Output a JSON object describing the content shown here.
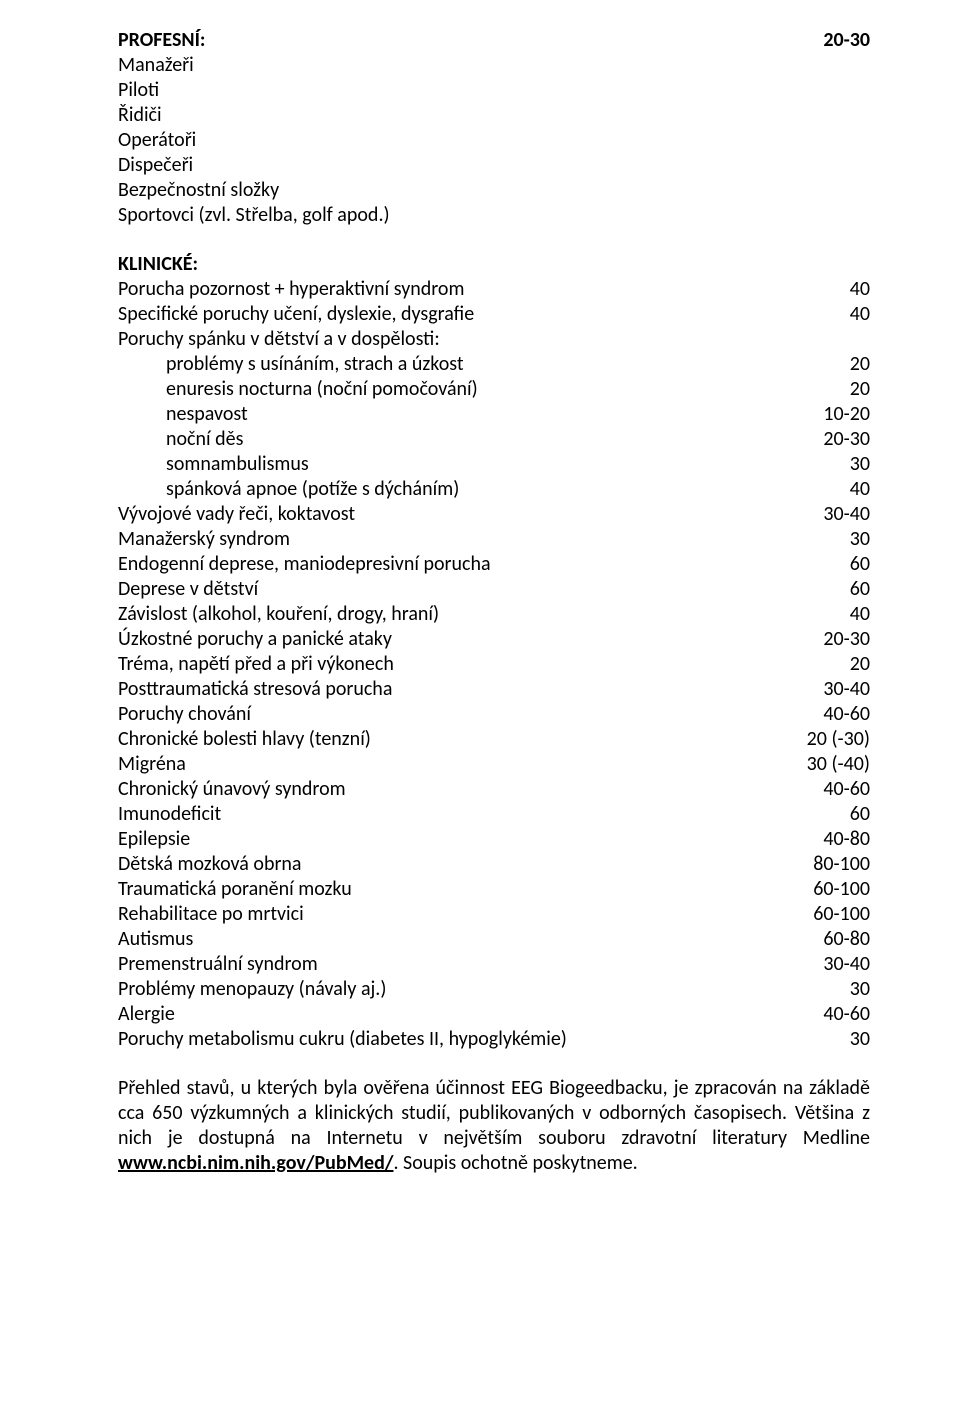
{
  "profesni": {
    "heading": "PROFESNÍ:",
    "heading_val": "20-30",
    "items": [
      "Manažeři",
      "Piloti",
      "Řidiči",
      "Operátoři",
      "Dispečeři",
      "Bezpečnostní složky",
      "Sportovci (zvl. Střelba, golf apod.)"
    ]
  },
  "klinicke": {
    "heading": "KLINICKÉ:",
    "rows": [
      {
        "label": "Porucha pozornost + hyperaktivní syndrom",
        "val": "40"
      },
      {
        "label": "Specifické poruchy učení, dyslexie, dysgrafie",
        "val": "40"
      },
      {
        "label": "Poruchy spánku v dětství a v dospělosti:",
        "val": ""
      }
    ],
    "spanek_rows": [
      {
        "label": "problémy s usínáním, strach a úzkost",
        "val": "20"
      },
      {
        "label": "enuresis nocturna (noční pomočování)",
        "val": "20"
      },
      {
        "label": "nespavost",
        "val": "10-20"
      },
      {
        "label": "noční děs",
        "val": "20-30"
      },
      {
        "label": "somnambulismus",
        "val": "30"
      },
      {
        "label": "spánková apnoe (potíže s dýcháním)",
        "val": "40"
      }
    ],
    "rows2": [
      {
        "label": "Vývojové vady řeči, koktavost",
        "val": "30-40"
      },
      {
        "label": "Manažerský syndrom",
        "val": "30"
      },
      {
        "label": "Endogenní deprese, maniodepresivní porucha",
        "val": "60"
      },
      {
        "label": "Deprese v dětství",
        "val": "60"
      },
      {
        "label": "Závislost (alkohol, kouření, drogy, hraní)",
        "val": "40"
      },
      {
        "label": "Úzkostné poruchy a panické ataky",
        "val": "20-30"
      },
      {
        "label": "Tréma, napětí před a při výkonech",
        "val": "20"
      },
      {
        "label": "Posttraumatická stresová porucha",
        "val": "30-40"
      },
      {
        "label": "Poruchy chování",
        "val": "40-60"
      },
      {
        "label": "Chronické bolesti hlavy (tenzní)",
        "val": "20 (-30)"
      },
      {
        "label": "Migréna",
        "val": "30 (-40)"
      },
      {
        "label": "Chronický únavový syndrom",
        "val": "40-60"
      },
      {
        "label": "Imunodeficit",
        "val": "60"
      },
      {
        "label": "Epilepsie",
        "val": "40-80"
      },
      {
        "label": "Dětská mozková obrna",
        "val": "80-100"
      },
      {
        "label": "Traumatická poranění mozku",
        "val": "60-100"
      },
      {
        "label": "Rehabilitace po mrtvici",
        "val": "60-100"
      },
      {
        "label": "Autismus",
        "val": "60-80"
      },
      {
        "label": "Premenstruální syndrom",
        "val": "30-40"
      },
      {
        "label": "Problémy menopauzy (návaly aj.)",
        "val": "30"
      },
      {
        "label": "Alergie",
        "val": "40-60"
      },
      {
        "label": "Poruchy metabolismu cukru (diabetes II, hypoglykémie)",
        "val": "30"
      }
    ]
  },
  "paragraph_pre": "Přehled stavů, u kterých byla ověřena účinnost EEG Biogeedbacku, je zpracován na základě cca 650 výzkumných a klinických studií, publikovaných v odborných časopisech. Většina z nich je dostupná na Internetu v největším souboru zdravotní literatury Medline ",
  "paragraph_link": "www.ncbi.nim.nih.gov/PubMed/",
  "paragraph_post": ". Soupis ochotně poskytneme."
}
